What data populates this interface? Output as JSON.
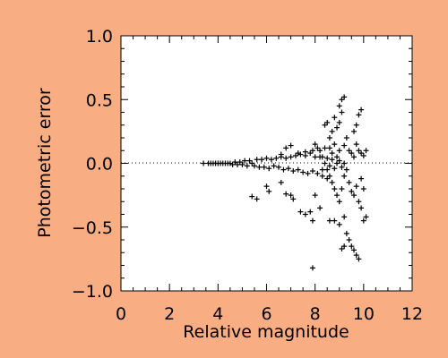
{
  "colors": {
    "background": "#f9ad82",
    "plot_area": "#ffffff",
    "marks": "#000000"
  },
  "chart_data": {
    "type": "scatter",
    "title": "",
    "xlabel": "Relative magnitude",
    "ylabel": "Photometric error",
    "xlim": [
      0,
      12
    ],
    "ylim": [
      -1.0,
      1.0
    ],
    "x_ticks": [
      0,
      2,
      4,
      6,
      8,
      10,
      12
    ],
    "x_tick_labels": [
      "0",
      "2",
      "4",
      "6",
      "8",
      "10",
      "12"
    ],
    "y_ticks": [
      -1.0,
      -0.5,
      0.0,
      0.5,
      1.0
    ],
    "y_tick_labels": [
      "−1.0",
      "−0.5",
      "0.0",
      "0.5",
      "1.0"
    ],
    "reference_line": {
      "y": 0.0,
      "style": "dotted"
    },
    "marker": "+",
    "grid": false,
    "legend": "none",
    "series": [
      {
        "points": [
          [
            3.4,
            0.0
          ],
          [
            3.6,
            0.0
          ],
          [
            3.7,
            0.0
          ],
          [
            3.8,
            0.0
          ],
          [
            3.9,
            0.0
          ],
          [
            4.0,
            0.0
          ],
          [
            4.1,
            0.0
          ],
          [
            4.2,
            0.0
          ],
          [
            4.3,
            0.0
          ],
          [
            4.4,
            0.0
          ],
          [
            4.5,
            0.0
          ],
          [
            4.6,
            -0.01
          ],
          [
            4.7,
            0.01
          ],
          [
            4.8,
            -0.01
          ],
          [
            4.9,
            0.01
          ],
          [
            5.0,
            -0.01
          ],
          [
            5.1,
            0.02
          ],
          [
            5.2,
            -0.02
          ],
          [
            5.3,
            0.02
          ],
          [
            5.4,
            0.0
          ],
          [
            5.5,
            -0.02
          ],
          [
            5.6,
            0.03
          ],
          [
            5.7,
            -0.03
          ],
          [
            5.8,
            0.03
          ],
          [
            5.9,
            -0.03
          ],
          [
            6.0,
            0.04
          ],
          [
            6.1,
            -0.04
          ],
          [
            6.2,
            0.03
          ],
          [
            6.3,
            -0.02
          ],
          [
            6.4,
            0.04
          ],
          [
            6.5,
            -0.03
          ],
          [
            6.6,
            0.05
          ],
          [
            6.7,
            -0.05
          ],
          [
            6.8,
            0.04
          ],
          [
            6.9,
            -0.04
          ],
          [
            7.0,
            0.05
          ],
          [
            7.1,
            -0.06
          ],
          [
            7.2,
            0.06
          ],
          [
            7.3,
            -0.05
          ],
          [
            7.4,
            0.07
          ],
          [
            7.5,
            -0.07
          ],
          [
            7.6,
            0.06
          ],
          [
            7.7,
            -0.08
          ],
          [
            7.8,
            0.08
          ],
          [
            7.9,
            -0.06
          ],
          [
            8.0,
            0.05
          ],
          [
            8.1,
            -0.08
          ],
          [
            8.2,
            0.1
          ],
          [
            8.3,
            -0.1
          ],
          [
            8.4,
            0.12
          ],
          [
            8.5,
            -0.12
          ],
          [
            5.4,
            -0.26
          ],
          [
            5.6,
            -0.28
          ],
          [
            6.0,
            -0.18
          ],
          [
            6.1,
            -0.22
          ],
          [
            6.6,
            -0.15
          ],
          [
            6.8,
            -0.24
          ],
          [
            7.0,
            -0.25
          ],
          [
            7.1,
            -0.28
          ],
          [
            7.4,
            -0.38
          ],
          [
            7.6,
            -0.4
          ],
          [
            7.8,
            -0.38
          ],
          [
            7.9,
            -0.45
          ],
          [
            8.0,
            -0.25
          ],
          [
            8.2,
            -0.35
          ],
          [
            7.9,
            -0.82
          ],
          [
            6.6,
            0.07
          ],
          [
            6.8,
            0.12
          ],
          [
            7.0,
            0.14
          ],
          [
            7.3,
            0.08
          ],
          [
            7.6,
            0.09
          ],
          [
            7.9,
            0.1
          ],
          [
            8.0,
            0.15
          ],
          [
            8.1,
            0.12
          ],
          [
            8.3,
            0.05
          ],
          [
            8.4,
            0.3
          ],
          [
            8.5,
            0.32
          ],
          [
            8.6,
            0.2
          ],
          [
            8.7,
            0.25
          ],
          [
            8.8,
            0.36
          ],
          [
            8.9,
            0.28
          ],
          [
            9.0,
            0.45
          ],
          [
            9.1,
            0.5
          ],
          [
            9.2,
            0.52
          ],
          [
            9.1,
            0.4
          ],
          [
            9.0,
            0.32
          ],
          [
            8.8,
            0.15
          ],
          [
            8.7,
            0.08
          ],
          [
            8.6,
            0.12
          ],
          [
            8.9,
            0.05
          ],
          [
            9.0,
            0.1
          ],
          [
            9.2,
            0.14
          ],
          [
            9.3,
            0.2
          ],
          [
            9.4,
            0.1
          ],
          [
            8.5,
            -0.05
          ],
          [
            8.6,
            -0.1
          ],
          [
            8.7,
            -0.15
          ],
          [
            8.8,
            -0.2
          ],
          [
            8.9,
            -0.25
          ],
          [
            9.0,
            -0.3
          ],
          [
            9.1,
            -0.2
          ],
          [
            9.2,
            -0.1
          ],
          [
            9.3,
            -0.05
          ],
          [
            9.4,
            -0.15
          ],
          [
            9.5,
            -0.22
          ],
          [
            9.6,
            -0.25
          ],
          [
            9.7,
            -0.18
          ],
          [
            9.8,
            -0.3
          ],
          [
            9.9,
            -0.12
          ],
          [
            10.0,
            -0.2
          ],
          [
            8.6,
            -0.45
          ],
          [
            8.8,
            -0.45
          ],
          [
            9.0,
            -0.48
          ],
          [
            9.2,
            -0.42
          ],
          [
            9.3,
            -0.55
          ],
          [
            9.4,
            -0.6
          ],
          [
            9.5,
            -0.65
          ],
          [
            9.6,
            -0.68
          ],
          [
            9.7,
            -0.72
          ],
          [
            9.8,
            -0.75
          ],
          [
            9.1,
            -0.67
          ],
          [
            9.2,
            -0.65
          ],
          [
            9.9,
            -0.35
          ],
          [
            10.0,
            -0.45
          ],
          [
            10.1,
            -0.42
          ],
          [
            9.5,
            0.08
          ],
          [
            9.6,
            0.05
          ],
          [
            9.7,
            0.15
          ],
          [
            9.8,
            0.1
          ],
          [
            9.9,
            0.08
          ],
          [
            10.0,
            0.06
          ],
          [
            10.1,
            0.1
          ],
          [
            9.8,
            0.38
          ],
          [
            9.9,
            0.42
          ],
          [
            9.7,
            0.3
          ],
          [
            9.6,
            0.25
          ],
          [
            8.2,
            0.05
          ],
          [
            8.3,
            -0.05
          ],
          [
            8.4,
            0.0
          ],
          [
            8.5,
            0.04
          ],
          [
            8.6,
            -0.02
          ],
          [
            8.7,
            0.03
          ],
          [
            8.8,
            -0.04
          ],
          [
            8.9,
            0.0
          ],
          [
            9.0,
            0.02
          ],
          [
            9.1,
            -0.03
          ],
          [
            9.2,
            0.0
          ]
        ]
      }
    ]
  }
}
